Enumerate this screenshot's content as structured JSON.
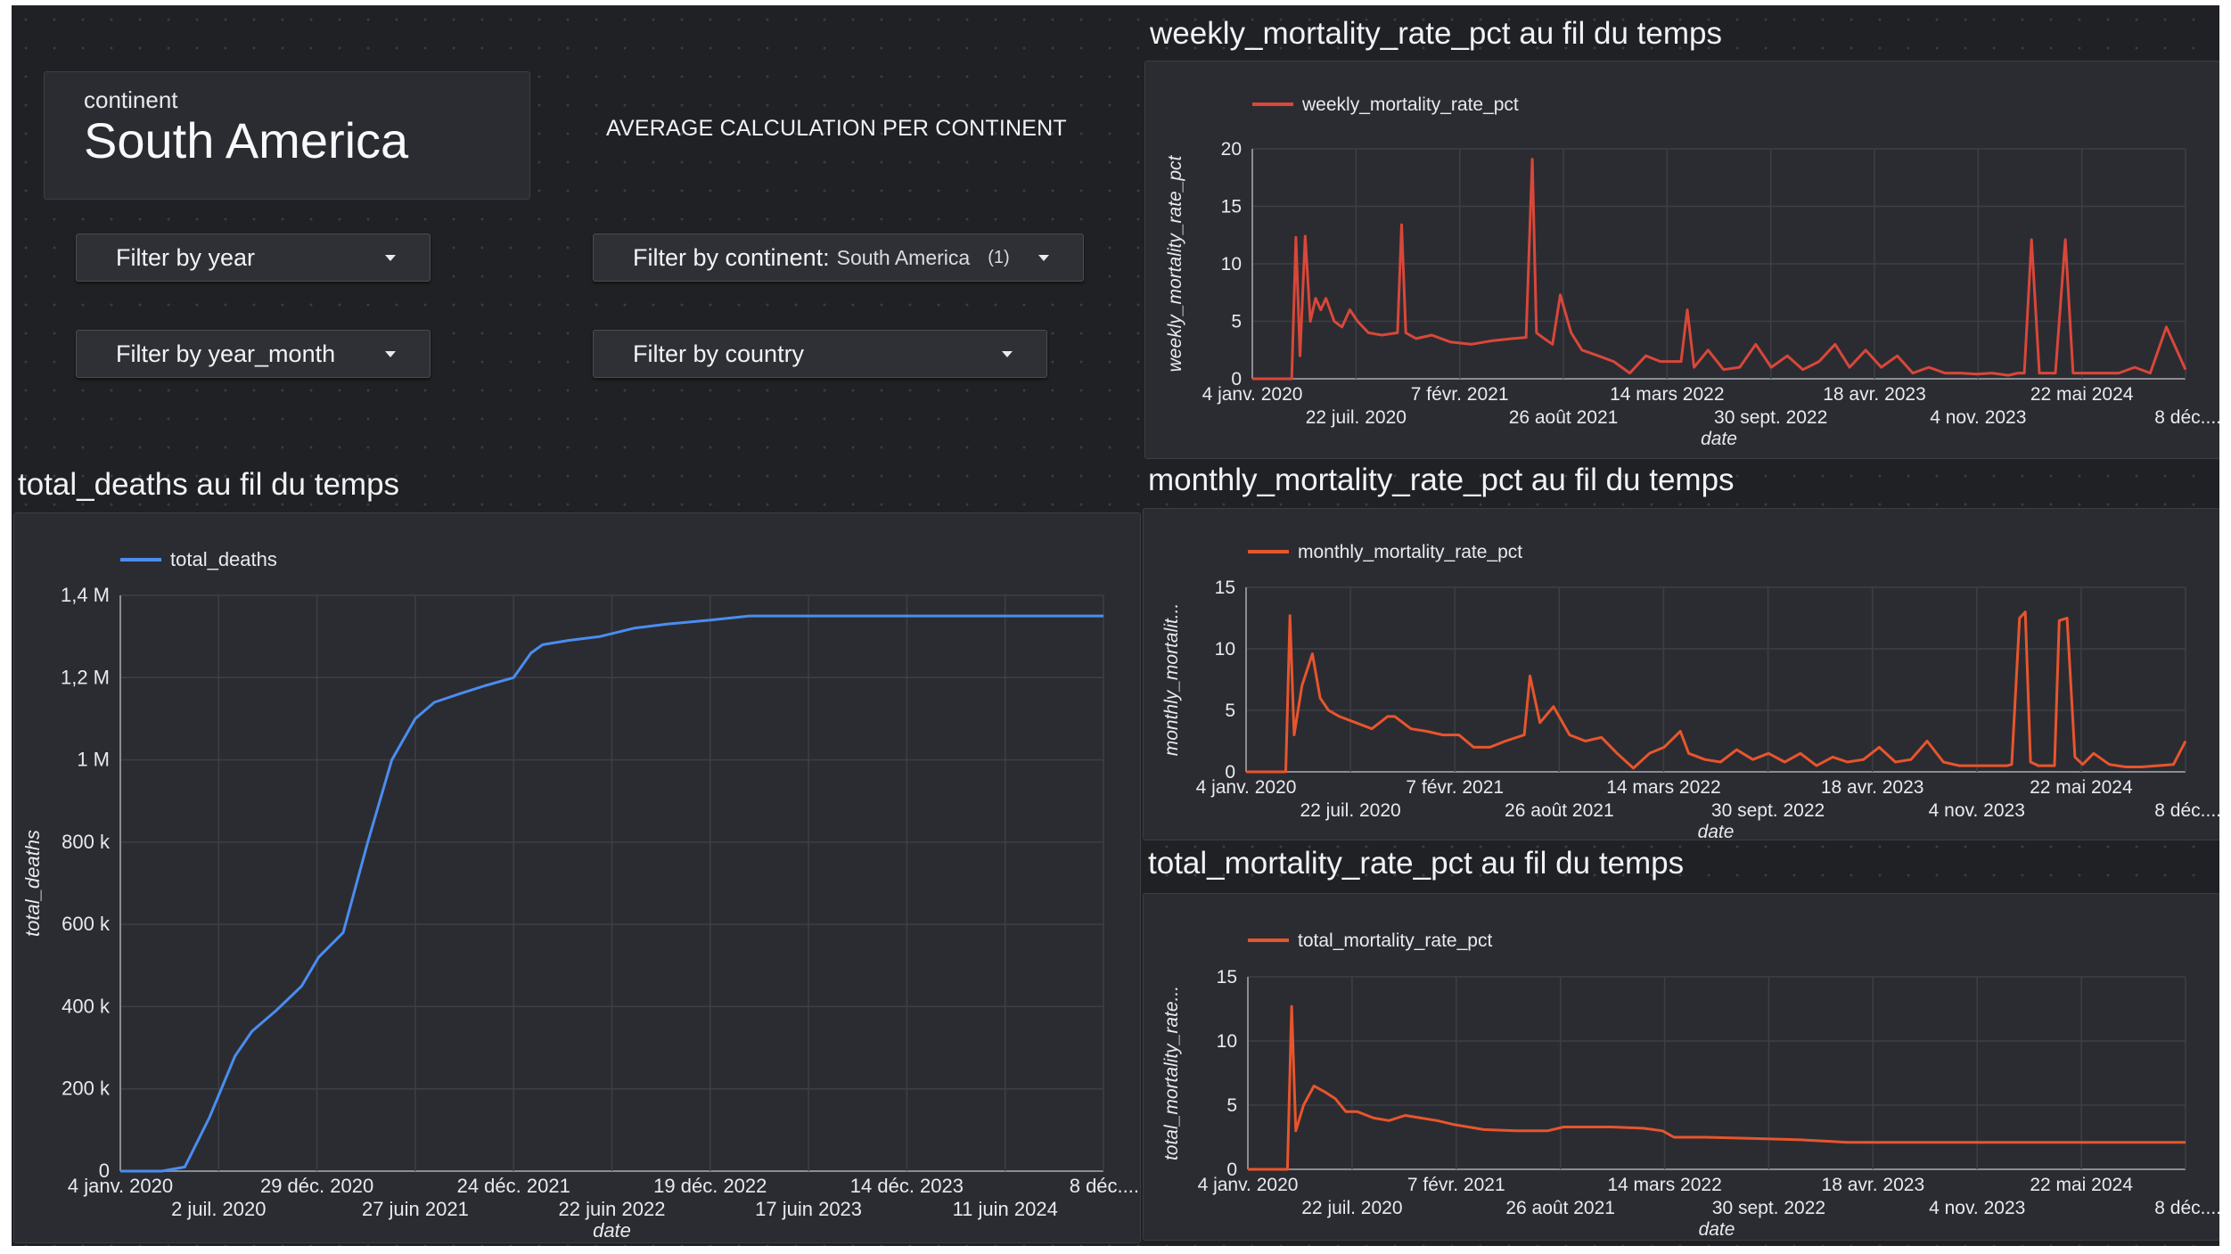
{
  "selector": {
    "label": "continent",
    "value": "South America"
  },
  "info_text": "AVERAGE CALCULATION PER CONTINENT",
  "filters": {
    "year": {
      "label": "Filter by year"
    },
    "year_month": {
      "label": "Filter by year_month"
    },
    "continent": {
      "label": "Filter by continent:",
      "value": "South America",
      "count": "(1)"
    },
    "country": {
      "label": "Filter by country"
    }
  },
  "titles": {
    "weekly": "weekly_mortality_rate_pct au fil du temps",
    "monthly": "monthly_mortality_rate_pct au fil du temps",
    "total_rate": "total_mortality_rate_pct au fil du temps",
    "total_deaths": "total_deaths au fil du temps"
  },
  "colors": {
    "blue": "#4a8df0",
    "red": "#d9473a",
    "orange": "#e8552d",
    "background": "#202124",
    "panel": "#2b2c31",
    "grid": "#3c3f45"
  },
  "chart_data": [
    {
      "id": "weekly",
      "type": "line",
      "title": "weekly_mortality_rate_pct au fil du temps",
      "xlabel": "date",
      "ylabel": "weekly_mortality_rate_pct",
      "series": [
        {
          "name": "weekly_mortality_rate_pct",
          "color": "#d9473a",
          "x": [
            "2020-01-04",
            "2020-03-20",
            "2020-03-28",
            "2020-04-05",
            "2020-04-15",
            "2020-04-25",
            "2020-05-05",
            "2020-05-15",
            "2020-05-25",
            "2020-06-10",
            "2020-06-25",
            "2020-07-10",
            "2020-07-25",
            "2020-08-15",
            "2020-09-10",
            "2020-10-10",
            "2020-10-18",
            "2020-10-26",
            "2020-11-15",
            "2020-12-15",
            "2021-01-20",
            "2021-03-01",
            "2021-04-10",
            "2021-05-20",
            "2021-06-15",
            "2021-06-27",
            "2021-07-05",
            "2021-07-20",
            "2021-08-05",
            "2021-08-20",
            "2021-09-10",
            "2021-10-01",
            "2021-11-01",
            "2021-12-01",
            "2022-01-01",
            "2022-02-01",
            "2022-03-01",
            "2022-04-10",
            "2022-04-22",
            "2022-05-05",
            "2022-06-01",
            "2022-07-01",
            "2022-08-01",
            "2022-09-01",
            "2022-10-01",
            "2022-11-01",
            "2022-12-01",
            "2023-01-01",
            "2023-02-01",
            "2023-03-01",
            "2023-04-01",
            "2023-05-01",
            "2023-06-01",
            "2023-07-01",
            "2023-08-01",
            "2023-09-01",
            "2023-10-01",
            "2023-11-01",
            "2023-12-01",
            "2024-01-01",
            "2024-01-20",
            "2024-02-01",
            "2024-02-15",
            "2024-03-01",
            "2024-04-01",
            "2024-04-20",
            "2024-05-05",
            "2024-05-20",
            "2024-06-10",
            "2024-07-01",
            "2024-08-01",
            "2024-09-01",
            "2024-10-01",
            "2024-11-01",
            "2024-12-08"
          ],
          "values": [
            0,
            0,
            12.3,
            2,
            12.4,
            5,
            7,
            6,
            7,
            5,
            4.5,
            6,
            5,
            4,
            3.8,
            4,
            13.4,
            4,
            3.5,
            3.8,
            3.2,
            3,
            3.3,
            3.5,
            3.6,
            19.1,
            4,
            3.5,
            3,
            7.3,
            4,
            2.5,
            2,
            1.5,
            0.5,
            2,
            1.5,
            1.5,
            6,
            1,
            2.5,
            0.8,
            1,
            3,
            1,
            2,
            0.8,
            1.5,
            3,
            1,
            2.5,
            1,
            2,
            0.5,
            1,
            0.5,
            0.5,
            0.4,
            0.5,
            0.3,
            0.5,
            0.5,
            12.1,
            0.5,
            0.5,
            12.1,
            0.5,
            0.5,
            0.5,
            0.5,
            0.5,
            1,
            0.5,
            4.5,
            0.8
          ]
        }
      ],
      "ylim": [
        0,
        20
      ],
      "yticks": [
        "0",
        "5",
        "10",
        "15",
        "20"
      ],
      "xticks_row1": [
        "4 janv. 2020",
        "7 févr. 2021",
        "14 mars 2022",
        "18 avr. 2023",
        "22 mai 2024"
      ],
      "xticks_row2": [
        "22 juil. 2020",
        "26 août 2021",
        "30 sept. 2022",
        "4 nov. 2023",
        "8 déc...."
      ],
      "grid": true,
      "legend": "top-left"
    },
    {
      "id": "monthly",
      "type": "line",
      "title": "monthly_mortality_rate_pct au fil du temps",
      "xlabel": "date",
      "ylabel": "monthly_mortalit...",
      "series": [
        {
          "name": "monthly_mortality_rate_pct",
          "color": "#e8552d",
          "x": [
            "2020-01-04",
            "2020-03-20",
            "2020-03-28",
            "2020-04-05",
            "2020-04-20",
            "2020-05-10",
            "2020-05-25",
            "2020-06-10",
            "2020-07-01",
            "2020-08-01",
            "2020-09-01",
            "2020-10-01",
            "2020-10-15",
            "2020-11-15",
            "2020-12-15",
            "2021-01-15",
            "2021-02-15",
            "2021-03-15",
            "2021-04-15",
            "2021-05-15",
            "2021-06-20",
            "2021-07-01",
            "2021-07-20",
            "2021-08-15",
            "2021-09-15",
            "2021-10-15",
            "2021-11-15",
            "2021-12-15",
            "2022-01-15",
            "2022-02-15",
            "2022-03-15",
            "2022-04-15",
            "2022-05-01",
            "2022-06-01",
            "2022-07-01",
            "2022-08-01",
            "2022-09-01",
            "2022-10-01",
            "2022-11-01",
            "2022-12-01",
            "2023-01-01",
            "2023-02-01",
            "2023-03-01",
            "2023-04-01",
            "2023-05-01",
            "2023-06-01",
            "2023-07-01",
            "2023-08-01",
            "2023-09-01",
            "2023-10-01",
            "2023-11-01",
            "2023-12-01",
            "2024-01-01",
            "2024-01-10",
            "2024-01-25",
            "2024-02-05",
            "2024-02-15",
            "2024-03-01",
            "2024-04-01",
            "2024-04-10",
            "2024-04-25",
            "2024-05-10",
            "2024-05-25",
            "2024-06-15",
            "2024-07-15",
            "2024-08-15",
            "2024-09-15",
            "2024-10-15",
            "2024-11-15",
            "2024-12-08"
          ],
          "values": [
            0,
            0,
            12.7,
            3,
            7,
            9.6,
            6,
            5,
            4.5,
            4,
            3.5,
            4.5,
            4.5,
            3.5,
            3.3,
            3,
            3,
            2,
            2,
            2.5,
            3,
            7.8,
            4,
            5.3,
            3,
            2.5,
            2.8,
            1.5,
            0.3,
            1.5,
            2,
            3.3,
            1.5,
            1,
            0.8,
            1.8,
            1,
            1.5,
            0.8,
            1.5,
            0.5,
            1.2,
            0.8,
            1,
            2,
            0.8,
            1,
            2.5,
            0.8,
            0.5,
            0.5,
            0.5,
            0.5,
            0.6,
            12.5,
            13,
            0.8,
            0.5,
            0.5,
            12.3,
            12.5,
            1.2,
            0.6,
            1.5,
            0.6,
            0.4,
            0.4,
            0.5,
            0.6,
            2.5
          ]
        }
      ],
      "ylim": [
        0,
        15
      ],
      "yticks": [
        "0",
        "5",
        "10",
        "15"
      ],
      "xticks_row1": [
        "4 janv. 2020",
        "7 févr. 2021",
        "14 mars 2022",
        "18 avr. 2023",
        "22 mai 2024"
      ],
      "xticks_row2": [
        "22 juil. 2020",
        "26 août 2021",
        "30 sept. 2022",
        "4 nov. 2023",
        "8 déc...."
      ],
      "grid": true,
      "legend": "top-left"
    },
    {
      "id": "total_rate",
      "type": "line",
      "title": "total_mortality_rate_pct au fil du temps",
      "xlabel": "date",
      "ylabel": "total_mortality_rate...",
      "series": [
        {
          "name": "total_mortality_rate_pct",
          "color": "#e8552d",
          "x": [
            "2020-01-04",
            "2020-03-20",
            "2020-03-28",
            "2020-04-05",
            "2020-04-20",
            "2020-05-10",
            "2020-06-01",
            "2020-06-20",
            "2020-07-10",
            "2020-08-01",
            "2020-09-01",
            "2020-10-01",
            "2020-11-01",
            "2020-12-01",
            "2021-01-01",
            "2021-02-01",
            "2021-04-01",
            "2021-06-01",
            "2021-08-01",
            "2021-09-01",
            "2021-12-01",
            "2022-02-01",
            "2022-03-10",
            "2022-04-01",
            "2022-06-01",
            "2022-09-01",
            "2022-12-01",
            "2023-03-01",
            "2023-06-01",
            "2024-01-01",
            "2024-06-01",
            "2024-12-08"
          ],
          "values": [
            0,
            0,
            12.7,
            3,
            5,
            6.5,
            6,
            5.5,
            4.5,
            4.5,
            4,
            3.8,
            4.2,
            4,
            3.8,
            3.5,
            3.1,
            3,
            3,
            3.3,
            3.3,
            3.2,
            3,
            2.5,
            2.5,
            2.4,
            2.3,
            2.1,
            2.1,
            2.1,
            2.1,
            2.1
          ]
        }
      ],
      "ylim": [
        0,
        15
      ],
      "yticks": [
        "0",
        "5",
        "10",
        "15"
      ],
      "xticks_row1": [
        "4 janv. 2020",
        "7 févr. 2021",
        "14 mars 2022",
        "18 avr. 2023",
        "22 mai 2024"
      ],
      "xticks_row2": [
        "22 juil. 2020",
        "26 août 2021",
        "30 sept. 2022",
        "4 nov. 2023",
        "8 déc...."
      ],
      "grid": true,
      "legend": "top-left"
    },
    {
      "id": "total_deaths",
      "type": "line",
      "title": "total_deaths au fil du temps",
      "xlabel": "date",
      "ylabel": "total_deaths",
      "series": [
        {
          "name": "total_deaths",
          "color": "#4a8df0",
          "x": [
            "2020-01-04",
            "2020-03-20",
            "2020-05-01",
            "2020-06-15",
            "2020-08-01",
            "2020-09-01",
            "2020-10-15",
            "2020-12-01",
            "2021-01-01",
            "2021-02-15",
            "2021-04-01",
            "2021-05-15",
            "2021-06-27",
            "2021-08-01",
            "2021-09-15",
            "2021-11-01",
            "2021-12-24",
            "2022-01-25",
            "2022-02-15",
            "2022-04-01",
            "2022-06-01",
            "2022-08-01",
            "2022-10-01",
            "2022-12-19",
            "2023-03-01",
            "2023-06-17",
            "2023-12-14",
            "2024-06-11",
            "2024-12-08"
          ],
          "values": [
            0,
            0,
            0.01,
            0.13,
            0.28,
            0.34,
            0.39,
            0.45,
            0.52,
            0.58,
            0.8,
            1.0,
            1.1,
            1.14,
            1.16,
            1.18,
            1.2,
            1.26,
            1.28,
            1.29,
            1.3,
            1.32,
            1.33,
            1.34,
            1.35,
            1.35,
            1.35,
            1.35,
            1.35
          ]
        }
      ],
      "ylim": [
        0,
        1.4
      ],
      "yunit": "M",
      "yticks": [
        "0",
        "200 k",
        "400 k",
        "600 k",
        "800 k",
        "1 M",
        "1,2 M",
        "1,4 M"
      ],
      "xticks_row1": [
        "4 janv. 2020",
        "29 déc. 2020",
        "24 déc. 2021",
        "19 déc. 2022",
        "14 déc. 2023",
        "8 déc...."
      ],
      "xticks_row2": [
        "2 juil. 2020",
        "27 juin 2021",
        "22 juin 2022",
        "17 juin 2023",
        "11 juin 2024"
      ],
      "grid": true,
      "legend": "top-left"
    }
  ]
}
